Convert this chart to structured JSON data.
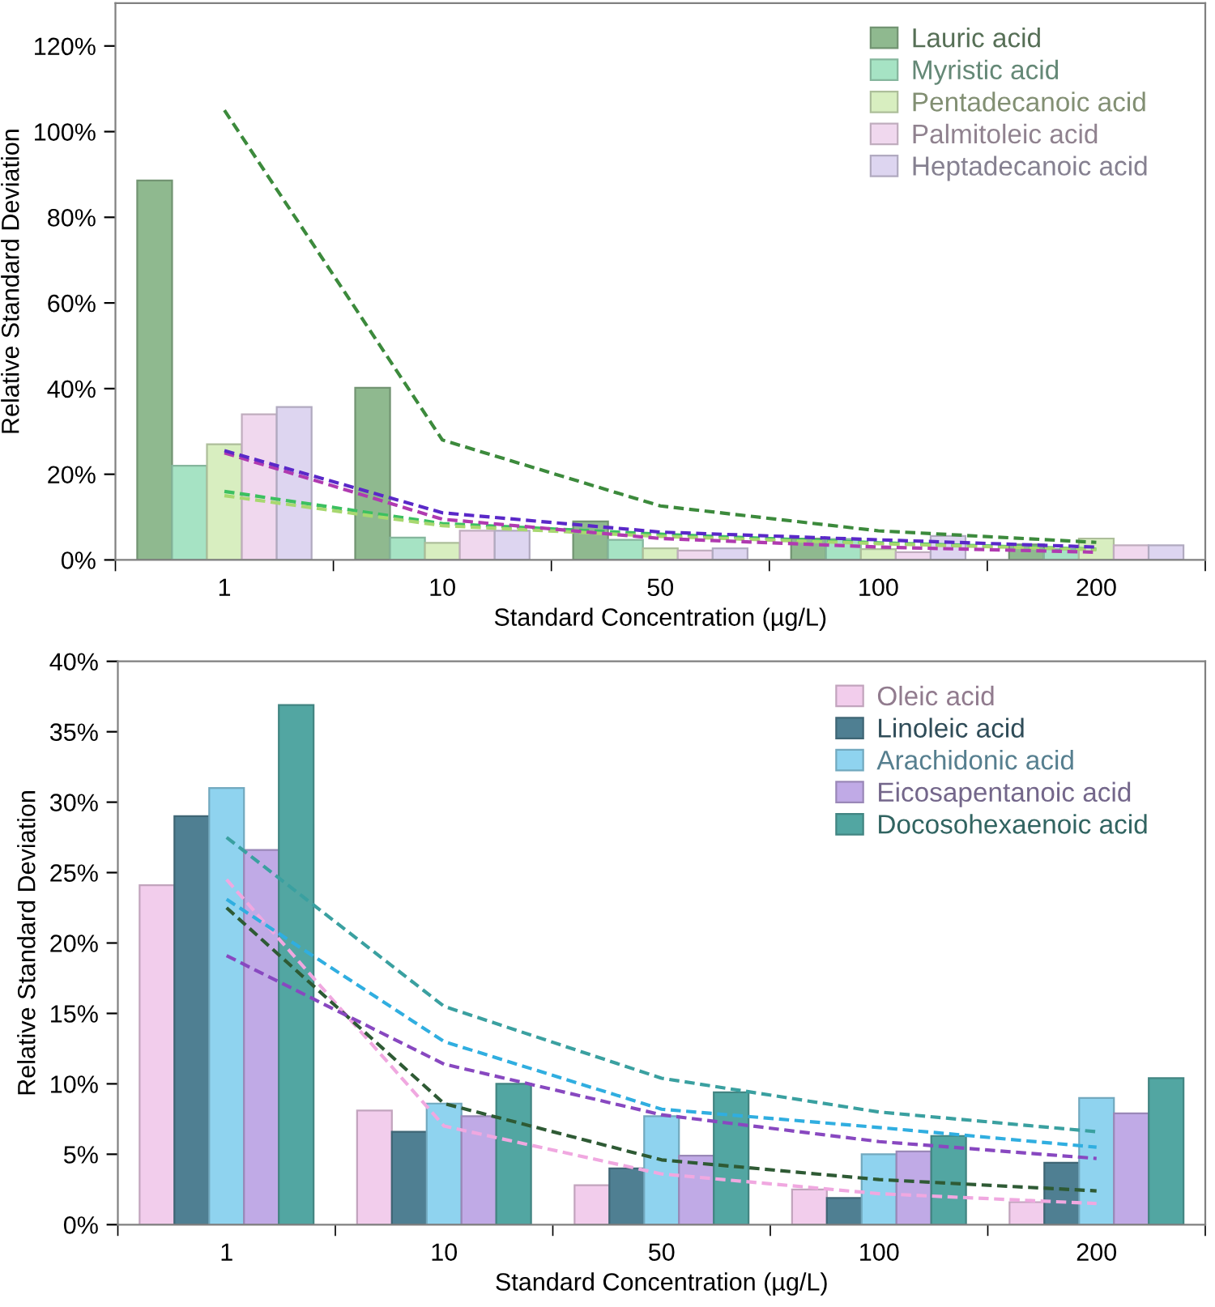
{
  "chart_data": [
    {
      "type": "bar",
      "xlabel": "Standard Concentration (µg/L)",
      "ylabel": "Relative Standard Deviation",
      "categories": [
        "1",
        "10",
        "50",
        "100",
        "200"
      ],
      "ylim": [
        0,
        130
      ],
      "yticks": [
        {
          "value": 0,
          "label": "0%"
        },
        {
          "value": 20,
          "label": "20%"
        },
        {
          "value": 40,
          "label": "40%"
        },
        {
          "value": 60,
          "label": "60%"
        },
        {
          "value": 80,
          "label": "80%"
        },
        {
          "value": 100,
          "label": "100%"
        },
        {
          "value": 120,
          "label": "120%"
        }
      ],
      "legend": "top right",
      "grid": false,
      "series": [
        {
          "name": "Lauric acid",
          "color": "#8fb98f",
          "values": [
            88.6,
            40.2,
            9.0,
            5.0,
            3.6
          ]
        },
        {
          "name": "Myristic acid",
          "color": "#a6e3c4",
          "values": [
            22,
            5.2,
            4.7,
            4.9,
            2.5
          ]
        },
        {
          "name": "Pentadecanoic acid",
          "color": "#d8eec0",
          "values": [
            27,
            4.0,
            2.7,
            2.5,
            5.0
          ]
        },
        {
          "name": "Palmitoleic acid",
          "color": "#f0d8ee",
          "values": [
            34,
            6.8,
            2.2,
            1.8,
            3.4
          ]
        },
        {
          "name": "Heptadecanoic acid",
          "color": "#ddd5f0",
          "values": [
            35.7,
            6.8,
            2.7,
            5.6,
            3.4
          ]
        },
        {
          "type": "line",
          "line_style": "dashed",
          "color": "#3c8a3c",
          "values": [
            105,
            28,
            12.6,
            6.8,
            4.1
          ]
        },
        {
          "type": "line",
          "line_style": "dashed",
          "color": "#3cc060",
          "values": [
            16,
            8.5,
            6,
            4,
            2.5
          ]
        },
        {
          "type": "line",
          "line_style": "dashed",
          "color": "#a8d870",
          "values": [
            15,
            8,
            5.5,
            3.8,
            2.4
          ]
        },
        {
          "type": "line",
          "line_style": "dashed",
          "color": "#b03ab0",
          "values": [
            25,
            9.5,
            5,
            3,
            1.8
          ]
        },
        {
          "type": "line",
          "line_style": "dashed",
          "color": "#5a28c8",
          "values": [
            25.5,
            11,
            6.5,
            4.7,
            3
          ]
        }
      ]
    },
    {
      "type": "bar",
      "xlabel": "Standard Concentration (µg/L)",
      "ylabel": "Relative Standard Deviation",
      "categories": [
        "1",
        "10",
        "50",
        "100",
        "200"
      ],
      "ylim": [
        0,
        40
      ],
      "yticks": [
        {
          "value": 0,
          "label": "0%"
        },
        {
          "value": 5,
          "label": "5%"
        },
        {
          "value": 10,
          "label": "10%"
        },
        {
          "value": 15,
          "label": "15%"
        },
        {
          "value": 20,
          "label": "20%"
        },
        {
          "value": 25,
          "label": "25%"
        },
        {
          "value": 30,
          "label": "30%"
        },
        {
          "value": 35,
          "label": "35%"
        },
        {
          "value": 40,
          "label": "40%"
        }
      ],
      "legend": "top right",
      "grid": false,
      "series": [
        {
          "name": "Oleic acid",
          "color": "#f2cdec",
          "values": [
            24.1,
            8.1,
            2.8,
            2.5,
            1.6
          ]
        },
        {
          "name": "Linoleic acid",
          "color": "#4f7f92",
          "values": [
            29,
            6.6,
            4.0,
            1.9,
            4.4
          ]
        },
        {
          "name": "Arachidonic acid",
          "color": "#8fd3ef",
          "values": [
            31.0,
            8.6,
            7.7,
            5.0,
            9.0
          ]
        },
        {
          "name": "Eicosapentanoic acid",
          "color": "#c0aae6",
          "values": [
            26.6,
            7.7,
            4.9,
            5.2,
            7.9
          ]
        },
        {
          "name": "Docosohexaenoic acid",
          "color": "#52a6a2",
          "values": [
            36.9,
            10.0,
            9.4,
            6.3,
            10.4
          ]
        },
        {
          "type": "line",
          "line_style": "dashed",
          "color": "#f0a8e0",
          "values": [
            24.5,
            7,
            3.6,
            2.2,
            1.5
          ]
        },
        {
          "type": "line",
          "line_style": "dashed",
          "color": "#2e5a34",
          "values": [
            22.5,
            8.6,
            4.6,
            3.2,
            2.4
          ]
        },
        {
          "type": "line",
          "line_style": "dashed",
          "color": "#30aee0",
          "values": [
            23.1,
            13,
            8.2,
            6.9,
            5.5
          ]
        },
        {
          "type": "line",
          "line_style": "dashed",
          "color": "#8848c0",
          "values": [
            19.1,
            11.4,
            7.8,
            5.9,
            4.7
          ]
        },
        {
          "type": "line",
          "line_style": "dashed",
          "color": "#3aa0a0",
          "values": [
            27.5,
            15.5,
            10.4,
            8,
            6.6
          ]
        }
      ]
    }
  ]
}
